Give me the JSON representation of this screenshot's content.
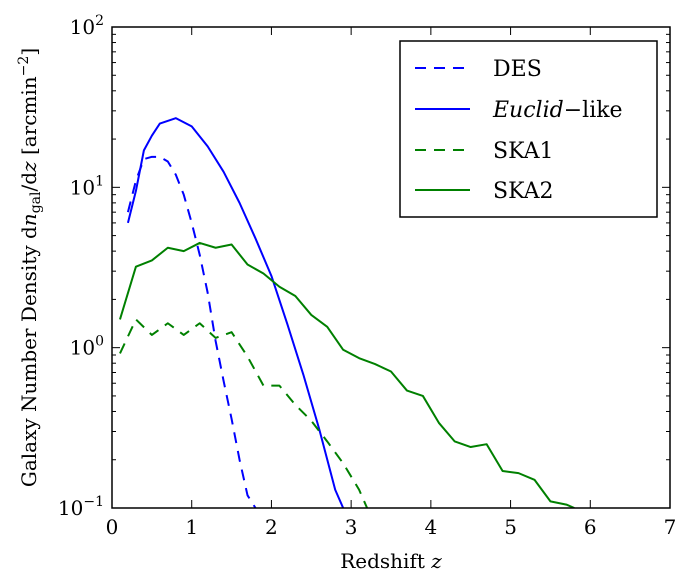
{
  "chart_data": {
    "type": "line",
    "title": "",
    "xlabel": "Redshift z",
    "ylabel": "Galaxy Number Density dn_gal/dz [arcmin^-2]",
    "ylabel_parts": {
      "main": "Galaxy Number Density d",
      "n": "n",
      "sub": "gal",
      "slash": "/d",
      "z": "z",
      "unit_open": " [arcmin",
      "unit_exp": "−2",
      "unit_close": "]"
    },
    "xlabel_parts": {
      "main": "Redshift ",
      "var": "z"
    },
    "xlim": [
      0,
      7
    ],
    "ylim": [
      0.1,
      100
    ],
    "yscale": "log",
    "x_ticks": [
      0,
      1,
      2,
      3,
      4,
      5,
      6,
      7
    ],
    "x_tick_labels": [
      "0",
      "1",
      "2",
      "3",
      "4",
      "5",
      "6",
      "7"
    ],
    "y_ticks": [
      0.1,
      1,
      10,
      100
    ],
    "y_tick_labels": [
      {
        "base": "10",
        "exp": "−1"
      },
      {
        "base": "10",
        "exp": "0"
      },
      {
        "base": "10",
        "exp": "1"
      },
      {
        "base": "10",
        "exp": "2"
      }
    ],
    "grid": false,
    "legend_position": "top-right",
    "series": [
      {
        "name": "DES",
        "color": "#0000ff",
        "style": "dashed",
        "x": [
          0.2,
          0.3,
          0.4,
          0.5,
          0.6,
          0.7,
          0.8,
          0.9,
          1.0,
          1.1,
          1.2,
          1.3,
          1.4,
          1.5,
          1.6,
          1.7,
          1.8
        ],
        "y": [
          7.0,
          11.0,
          15.0,
          15.5,
          15.5,
          14.5,
          12.0,
          9.0,
          6.0,
          3.8,
          2.2,
          1.1,
          0.62,
          0.36,
          0.2,
          0.12,
          0.1
        ]
      },
      {
        "name": "Euclid−like",
        "legend_italic": "Euclid",
        "legend_rest": "−like",
        "color": "#0000ff",
        "style": "solid",
        "x": [
          0.2,
          0.3,
          0.4,
          0.5,
          0.6,
          0.8,
          1.0,
          1.2,
          1.4,
          1.6,
          1.8,
          2.0,
          2.2,
          2.4,
          2.6,
          2.8,
          2.9
        ],
        "y": [
          6.0,
          9.5,
          17.0,
          21.0,
          25.0,
          27.0,
          24.0,
          18.0,
          12.5,
          8.0,
          4.8,
          2.8,
          1.4,
          0.68,
          0.31,
          0.13,
          0.1
        ]
      },
      {
        "name": "SKA1",
        "color": "#008000",
        "style": "dashed",
        "x": [
          0.1,
          0.3,
          0.5,
          0.7,
          0.9,
          1.1,
          1.3,
          1.5,
          1.7,
          1.9,
          2.1,
          2.3,
          2.5,
          2.7,
          2.9,
          3.1,
          3.2
        ],
        "y": [
          0.92,
          1.5,
          1.2,
          1.42,
          1.2,
          1.42,
          1.15,
          1.25,
          0.88,
          0.58,
          0.58,
          0.44,
          0.35,
          0.26,
          0.19,
          0.13,
          0.1
        ]
      },
      {
        "name": "SKA2",
        "color": "#008000",
        "style": "solid",
        "x": [
          0.1,
          0.3,
          0.5,
          0.7,
          0.9,
          1.1,
          1.3,
          1.5,
          1.7,
          1.9,
          2.1,
          2.3,
          2.5,
          2.7,
          2.9,
          3.1,
          3.3,
          3.5,
          3.7,
          3.9,
          4.1,
          4.3,
          4.5,
          4.7,
          4.9,
          5.1,
          5.3,
          5.5,
          5.7,
          5.8
        ],
        "y": [
          1.5,
          3.2,
          3.5,
          4.2,
          4.0,
          4.5,
          4.2,
          4.4,
          3.3,
          2.9,
          2.4,
          2.1,
          1.6,
          1.35,
          0.97,
          0.86,
          0.79,
          0.71,
          0.54,
          0.5,
          0.34,
          0.26,
          0.24,
          0.25,
          0.17,
          0.165,
          0.15,
          0.11,
          0.105,
          0.1
        ]
      }
    ]
  }
}
